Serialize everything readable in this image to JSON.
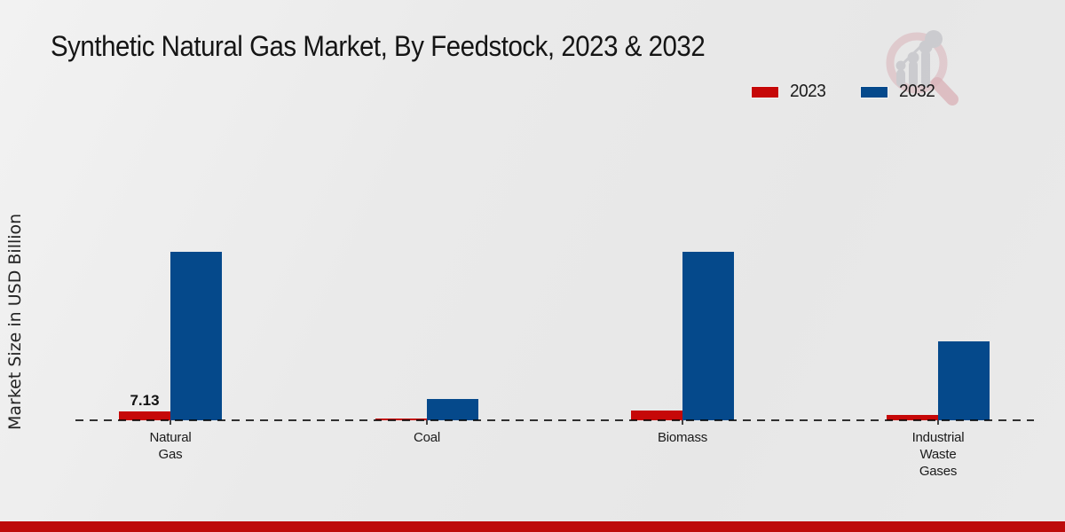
{
  "colors": {
    "bar_2023_red": "#c60808",
    "bar_2032_blue": "#05498b",
    "footer_strip_red": "#bd0b0b",
    "background_gray": "#e9e9e9"
  },
  "legend": {
    "items": [
      {
        "label": "2023",
        "color": "#c60808"
      },
      {
        "label": "2032",
        "color": "#05498b"
      }
    ]
  },
  "chart_data": {
    "type": "bar",
    "title": "Synthetic Natural Gas Market, By Feedstock, 2023 & 2032",
    "xlabel": "",
    "ylabel": "Market Size in USD Billion",
    "categories": [
      "Natural Gas",
      "Coal",
      "Biomass",
      "Industrial Waste Gases"
    ],
    "category_label_lines": [
      [
        "Natural",
        "Gas"
      ],
      [
        "Coal"
      ],
      [
        "Biomass"
      ],
      [
        "Industrial",
        "Waste",
        "Gases"
      ]
    ],
    "series": [
      {
        "name": "2023",
        "color": "#c60808",
        "values": [
          7.13,
          1.2,
          8.2,
          4.3
        ],
        "value_labels": [
          "7.13",
          "",
          "",
          ""
        ]
      },
      {
        "name": "2032",
        "color": "#05498b",
        "values": [
          135.5,
          17.1,
          135.5,
          63.5
        ],
        "value_labels": [
          "",
          "",
          "",
          ""
        ]
      }
    ],
    "ylim": [
      0,
      140
    ],
    "grid": false,
    "y_axis_ticks_visible": false,
    "baseline_style": "dashed",
    "legend_position": "top-right",
    "only_labeled_value": "7.13 (Natural Gas, 2023)"
  }
}
